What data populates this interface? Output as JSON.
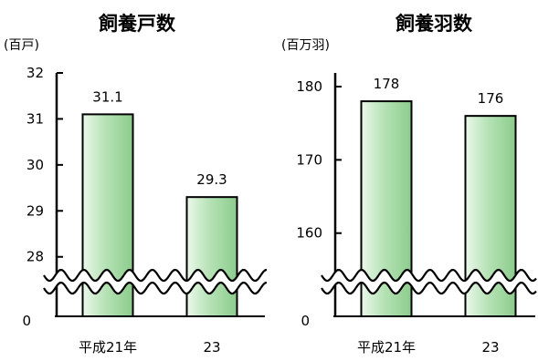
{
  "chart_data": [
    {
      "type": "bar",
      "title": "飼養戸数",
      "unit_label": "(百戸)",
      "categories": [
        "平成21年",
        "23"
      ],
      "values": [
        31.1,
        29.3
      ],
      "data_labels": [
        "31.1",
        "29.3"
      ],
      "y_ticks": [
        "28",
        "29",
        "30",
        "31",
        "32"
      ],
      "y_zero_label": "0",
      "ylim": [
        27.4,
        32
      ],
      "axis_break": true,
      "bar_color": "#9ed69e"
    },
    {
      "type": "bar",
      "title": "飼養羽数",
      "unit_label": "(百万羽)",
      "categories": [
        "平成21年",
        "23"
      ],
      "values": [
        178,
        176
      ],
      "data_labels": [
        "178",
        "176"
      ],
      "y_ticks": [
        "160",
        "170",
        "180"
      ],
      "y_zero_label": "0",
      "ylim": [
        153,
        180
      ],
      "axis_break": true,
      "bar_color": "#9ed69e"
    }
  ]
}
